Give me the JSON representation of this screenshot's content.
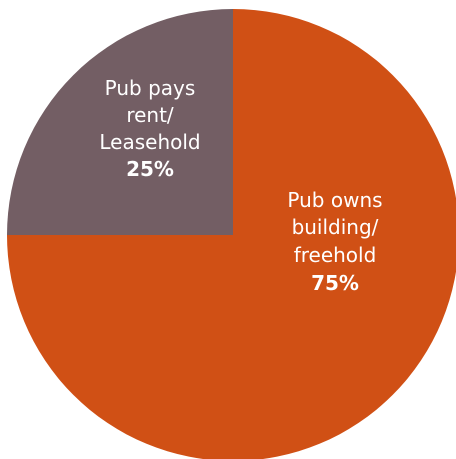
{
  "chart_data": {
    "type": "pie",
    "slices": [
      {
        "label_lines": [
          "Pub pays",
          "rent/",
          "Leasehold"
        ],
        "value": 25,
        "value_label": "25%",
        "color": "#735e64"
      },
      {
        "label_lines": [
          "Pub owns",
          "building/",
          "freehold"
        ],
        "value": 75,
        "value_label": "75%",
        "color": "#d05015"
      }
    ]
  }
}
